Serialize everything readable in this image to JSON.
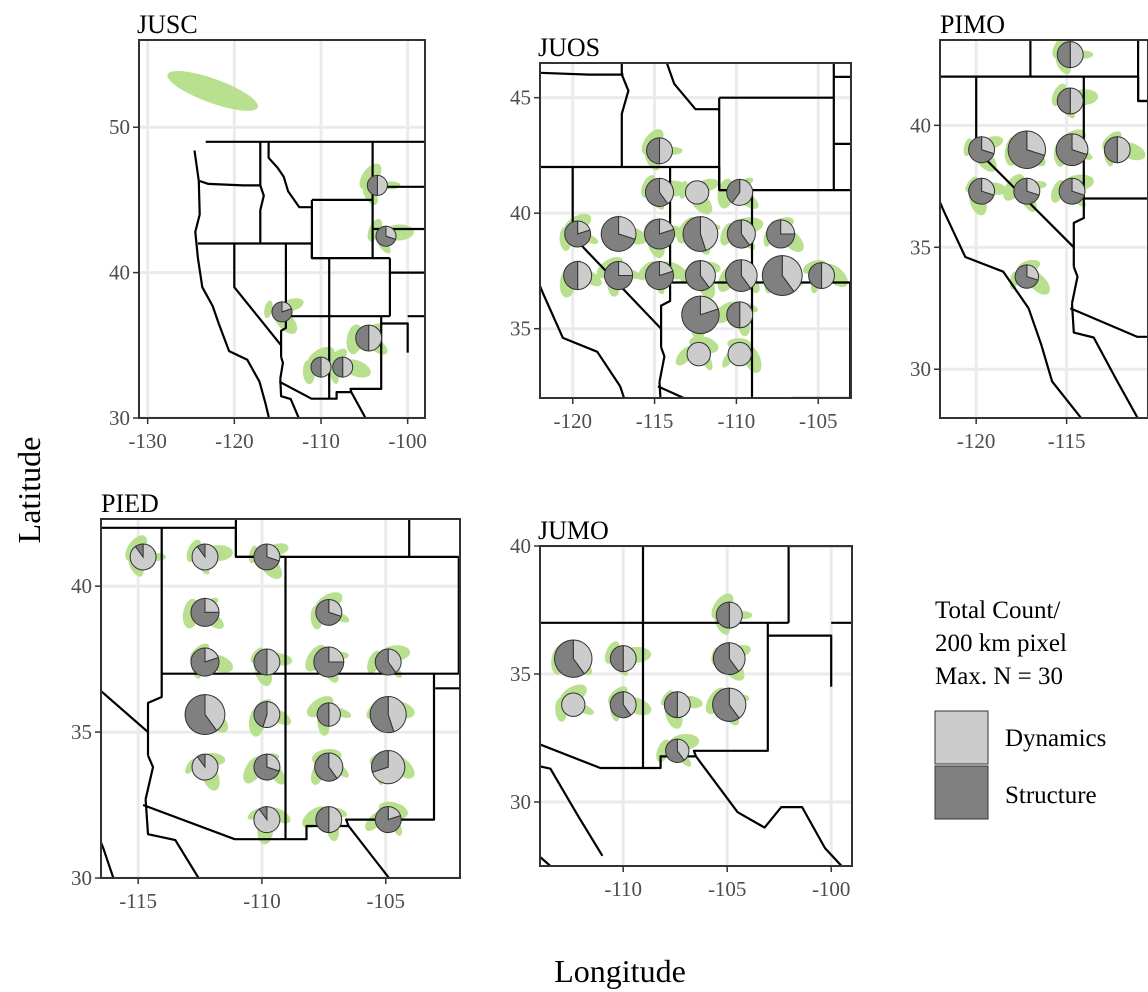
{
  "figure": {
    "x_axis_title": "Longitude",
    "y_axis_title": "Latitude"
  },
  "colors": {
    "range_fill": "#b8e08f",
    "dynamics": "#cccccc",
    "structure": "#808080",
    "grid": "#ebebeb",
    "frame": "#333333"
  },
  "legend": {
    "title_lines": [
      "Total Count/",
      "200 km pixel",
      "Max. N = 30"
    ],
    "items": [
      {
        "label": "Dynamics",
        "color": "#cccccc"
      },
      {
        "label": "Structure",
        "color": "#808080"
      }
    ]
  },
  "chart_data": [
    {
      "panel": "JUSC",
      "type": "map-pie",
      "xlim": [
        -131,
        -98
      ],
      "ylim": [
        30,
        56
      ],
      "x_ticks": [
        -130,
        -120,
        -110,
        -100
      ],
      "x_tick_labels": [
        "-130",
        "-120",
        "-110",
        "-100"
      ],
      "y_ticks": [
        30,
        40,
        50
      ],
      "y_tick_labels": [
        "30",
        "40",
        "50"
      ],
      "pies": [
        {
          "lon": -103.5,
          "lat": 46.0,
          "total": 1,
          "dynamics": 0.5,
          "structure": 0.5
        },
        {
          "lon": -102.5,
          "lat": 42.5,
          "total": 1,
          "dynamics": 0.3,
          "structure": 0.7
        },
        {
          "lon": -114.5,
          "lat": 37.3,
          "total": 1,
          "dynamics": 0.2,
          "structure": 0.8
        },
        {
          "lon": -104.5,
          "lat": 35.5,
          "total": 3,
          "dynamics": 0.5,
          "structure": 0.5
        },
        {
          "lon": -110.0,
          "lat": 33.5,
          "total": 1,
          "dynamics": 0.5,
          "structure": 0.5
        },
        {
          "lon": -107.5,
          "lat": 33.5,
          "total": 1,
          "dynamics": 0.5,
          "structure": 0.5
        }
      ]
    },
    {
      "panel": "JUOS",
      "type": "map-pie",
      "xlim": [
        -122,
        -103
      ],
      "ylim": [
        32,
        46.5
      ],
      "x_ticks": [
        -120,
        -115,
        -110,
        -105
      ],
      "x_tick_labels": [
        "-120",
        "-115",
        "-110",
        "-105"
      ],
      "y_ticks": [
        35,
        40,
        45
      ],
      "y_tick_labels": [
        "35",
        "40",
        "45"
      ],
      "pies": [
        {
          "lon": -114.7,
          "lat": 42.7,
          "total": 3,
          "dynamics": 0.5,
          "structure": 0.5
        },
        {
          "lon": -114.7,
          "lat": 40.9,
          "total": 4,
          "dynamics": 0.4,
          "structure": 0.6
        },
        {
          "lon": -112.4,
          "lat": 40.9,
          "total": 2,
          "dynamics": 1.0,
          "structure": 0.0
        },
        {
          "lon": -109.8,
          "lat": 40.9,
          "total": 3,
          "dynamics": 0.6,
          "structure": 0.4
        },
        {
          "lon": -119.7,
          "lat": 39.1,
          "total": 3,
          "dynamics": 0.2,
          "structure": 0.8
        },
        {
          "lon": -117.2,
          "lat": 39.1,
          "total": 8,
          "dynamics": 0.3,
          "structure": 0.7
        },
        {
          "lon": -114.7,
          "lat": 39.1,
          "total": 5,
          "dynamics": 0.2,
          "structure": 0.8
        },
        {
          "lon": -112.2,
          "lat": 39.1,
          "total": 8,
          "dynamics": 0.45,
          "structure": 0.55
        },
        {
          "lon": -109.7,
          "lat": 39.1,
          "total": 4,
          "dynamics": 0.4,
          "structure": 0.6
        },
        {
          "lon": -107.3,
          "lat": 39.1,
          "total": 4,
          "dynamics": 0.25,
          "structure": 0.75
        },
        {
          "lon": -119.7,
          "lat": 37.3,
          "total": 4,
          "dynamics": 0.5,
          "structure": 0.5
        },
        {
          "lon": -117.2,
          "lat": 37.3,
          "total": 4,
          "dynamics": 0.25,
          "structure": 0.75
        },
        {
          "lon": -114.7,
          "lat": 37.3,
          "total": 4,
          "dynamics": 0.2,
          "structure": 0.8
        },
        {
          "lon": -112.2,
          "lat": 37.3,
          "total": 5,
          "dynamics": 0.4,
          "structure": 0.6
        },
        {
          "lon": -109.7,
          "lat": 37.3,
          "total": 6,
          "dynamics": 0.4,
          "structure": 0.6
        },
        {
          "lon": -107.2,
          "lat": 37.3,
          "total": 12,
          "dynamics": 0.4,
          "structure": 0.6
        },
        {
          "lon": -104.8,
          "lat": 37.3,
          "total": 3,
          "dynamics": 0.5,
          "structure": 0.5
        },
        {
          "lon": -112.2,
          "lat": 35.6,
          "total": 10,
          "dynamics": 0.2,
          "structure": 0.8
        },
        {
          "lon": -109.8,
          "lat": 35.6,
          "total": 3,
          "dynamics": 0.5,
          "structure": 0.5
        },
        {
          "lon": -112.3,
          "lat": 33.9,
          "total": 2,
          "dynamics": 1.0,
          "structure": 0.0
        },
        {
          "lon": -109.8,
          "lat": 33.9,
          "total": 2,
          "dynamics": 1.0,
          "structure": 0.0
        }
      ]
    },
    {
      "panel": "PIMO",
      "type": "map-pie",
      "xlim": [
        -122,
        -110.5
      ],
      "ylim": [
        28,
        43.5
      ],
      "x_ticks": [
        -120,
        -115
      ],
      "x_tick_labels": [
        "-120",
        "-115"
      ],
      "y_ticks": [
        30,
        35,
        40
      ],
      "y_tick_labels": [
        "30",
        "35",
        "40"
      ],
      "pies": [
        {
          "lon": -114.8,
          "lat": 42.9,
          "total": 3,
          "dynamics": 0.5,
          "structure": 0.5
        },
        {
          "lon": -114.8,
          "lat": 41.0,
          "total": 3,
          "dynamics": 0.5,
          "structure": 0.5
        },
        {
          "lon": -119.7,
          "lat": 39.0,
          "total": 3,
          "dynamics": 0.3,
          "structure": 0.7
        },
        {
          "lon": -117.2,
          "lat": 39.0,
          "total": 10,
          "dynamics": 0.3,
          "structure": 0.7
        },
        {
          "lon": -114.7,
          "lat": 39.0,
          "total": 6,
          "dynamics": 0.3,
          "structure": 0.7
        },
        {
          "lon": -112.2,
          "lat": 39.0,
          "total": 3,
          "dynamics": 0.5,
          "structure": 0.5
        },
        {
          "lon": -119.7,
          "lat": 37.3,
          "total": 3,
          "dynamics": 0.3,
          "structure": 0.7
        },
        {
          "lon": -117.2,
          "lat": 37.3,
          "total": 3,
          "dynamics": 0.3,
          "structure": 0.7
        },
        {
          "lon": -114.7,
          "lat": 37.3,
          "total": 3,
          "dynamics": 0.3,
          "structure": 0.7
        },
        {
          "lon": -117.2,
          "lat": 33.8,
          "total": 2,
          "dynamics": 0.3,
          "structure": 0.7
        }
      ]
    },
    {
      "panel": "PIED",
      "type": "map-pie",
      "xlim": [
        -116.5,
        -102
      ],
      "ylim": [
        30,
        42.3
      ],
      "x_ticks": [
        -115,
        -110,
        -105
      ],
      "x_tick_labels": [
        "-115",
        "-110",
        "-105"
      ],
      "y_ticks": [
        30,
        35,
        40
      ],
      "y_tick_labels": [
        "30",
        "35",
        "40"
      ],
      "pies": [
        {
          "lon": -114.8,
          "lat": 41.0,
          "total": 3,
          "dynamics": 0.9,
          "structure": 0.1
        },
        {
          "lon": -112.3,
          "lat": 41.0,
          "total": 3,
          "dynamics": 0.9,
          "structure": 0.1
        },
        {
          "lon": -109.8,
          "lat": 41.0,
          "total": 3,
          "dynamics": 0.3,
          "structure": 0.7
        },
        {
          "lon": -112.3,
          "lat": 39.1,
          "total": 4,
          "dynamics": 0.25,
          "structure": 0.75
        },
        {
          "lon": -107.3,
          "lat": 39.1,
          "total": 3,
          "dynamics": 0.3,
          "structure": 0.7
        },
        {
          "lon": -112.3,
          "lat": 37.4,
          "total": 4,
          "dynamics": 0.2,
          "structure": 0.8
        },
        {
          "lon": -109.8,
          "lat": 37.4,
          "total": 3,
          "dynamics": 0.5,
          "structure": 0.5
        },
        {
          "lon": -107.3,
          "lat": 37.4,
          "total": 5,
          "dynamics": 0.25,
          "structure": 0.75
        },
        {
          "lon": -104.9,
          "lat": 37.4,
          "total": 3,
          "dynamics": 0.4,
          "structure": 0.6
        },
        {
          "lon": -112.3,
          "lat": 35.6,
          "total": 12,
          "dynamics": 0.4,
          "structure": 0.6
        },
        {
          "lon": -109.8,
          "lat": 35.6,
          "total": 3,
          "dynamics": 0.55,
          "structure": 0.45
        },
        {
          "lon": -107.3,
          "lat": 35.6,
          "total": 2,
          "dynamics": 0.5,
          "structure": 0.5
        },
        {
          "lon": -104.9,
          "lat": 35.6,
          "total": 9,
          "dynamics": 0.45,
          "structure": 0.55
        },
        {
          "lon": -112.3,
          "lat": 33.8,
          "total": 3,
          "dynamics": 0.9,
          "structure": 0.1
        },
        {
          "lon": -109.8,
          "lat": 33.8,
          "total": 3,
          "dynamics": 0.3,
          "structure": 0.7
        },
        {
          "lon": -107.3,
          "lat": 33.8,
          "total": 4,
          "dynamics": 0.4,
          "structure": 0.6
        },
        {
          "lon": -104.9,
          "lat": 33.8,
          "total": 7,
          "dynamics": 0.7,
          "structure": 0.3
        },
        {
          "lon": -109.8,
          "lat": 32.0,
          "total": 3,
          "dynamics": 0.9,
          "structure": 0.1
        },
        {
          "lon": -107.3,
          "lat": 32.0,
          "total": 3,
          "dynamics": 0.5,
          "structure": 0.5
        },
        {
          "lon": -104.9,
          "lat": 32.0,
          "total": 3,
          "dynamics": 0.2,
          "structure": 0.8
        }
      ]
    },
    {
      "panel": "JUMO",
      "type": "map-pie",
      "xlim": [
        -114,
        -99
      ],
      "ylim": [
        27.5,
        40
      ],
      "x_ticks": [
        -110,
        -105,
        -100
      ],
      "x_tick_labels": [
        "-110",
        "-105",
        "-100"
      ],
      "y_ticks": [
        30,
        35,
        40
      ],
      "y_tick_labels": [
        "30",
        "35",
        "40"
      ],
      "pies": [
        {
          "lon": -104.9,
          "lat": 37.3,
          "total": 3,
          "dynamics": 0.5,
          "structure": 0.5
        },
        {
          "lon": -110.0,
          "lat": 35.6,
          "total": 3,
          "dynamics": 0.5,
          "structure": 0.5
        },
        {
          "lon": -104.9,
          "lat": 35.6,
          "total": 6,
          "dynamics": 0.4,
          "structure": 0.6
        },
        {
          "lon": -112.4,
          "lat": 35.6,
          "total": 10,
          "dynamics": 0.4,
          "structure": 0.6
        },
        {
          "lon": -112.4,
          "lat": 33.8,
          "total": 2,
          "dynamics": 1.0,
          "structure": 0.0
        },
        {
          "lon": -110.0,
          "lat": 33.8,
          "total": 3,
          "dynamics": 0.4,
          "structure": 0.6
        },
        {
          "lon": -107.4,
          "lat": 33.8,
          "total": 3,
          "dynamics": 0.5,
          "structure": 0.5
        },
        {
          "lon": -104.9,
          "lat": 33.8,
          "total": 7,
          "dynamics": 0.4,
          "structure": 0.6
        },
        {
          "lon": -107.4,
          "lat": 32.0,
          "total": 2,
          "dynamics": 0.4,
          "structure": 0.6
        }
      ]
    }
  ]
}
